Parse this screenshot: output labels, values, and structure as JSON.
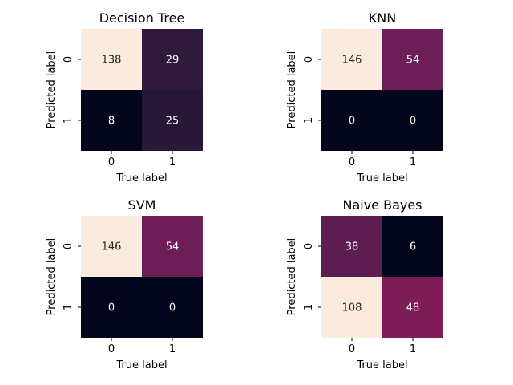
{
  "chart_data": [
    {
      "type": "heatmap",
      "title": "Decision Tree",
      "xlabel": "True label",
      "ylabel": "Predicted label",
      "x_ticks": [
        "0",
        "1"
      ],
      "y_ticks": [
        "0",
        "1"
      ],
      "values": [
        [
          138,
          29
        ],
        [
          8,
          25
        ]
      ],
      "colorbar": false,
      "colormap": "rocket"
    },
    {
      "type": "heatmap",
      "title": "KNN",
      "xlabel": "True label",
      "ylabel": "Predicted label",
      "x_ticks": [
        "0",
        "1"
      ],
      "y_ticks": [
        "0",
        "1"
      ],
      "values": [
        [
          146,
          54
        ],
        [
          0,
          0
        ]
      ],
      "colorbar": false,
      "colormap": "rocket"
    },
    {
      "type": "heatmap",
      "title": "SVM",
      "xlabel": "True label",
      "ylabel": "Predicted label",
      "x_ticks": [
        "0",
        "1"
      ],
      "y_ticks": [
        "0",
        "1"
      ],
      "values": [
        [
          146,
          54
        ],
        [
          0,
          0
        ]
      ],
      "colorbar": false,
      "colormap": "rocket"
    },
    {
      "type": "heatmap",
      "title": "Naive Bayes",
      "xlabel": "True label",
      "ylabel": "Predicted label",
      "x_ticks": [
        "0",
        "1"
      ],
      "y_ticks": [
        "0",
        "1"
      ],
      "values": [
        [
          38,
          6
        ],
        [
          108,
          48
        ]
      ],
      "colorbar": false,
      "colormap": "rocket"
    }
  ]
}
